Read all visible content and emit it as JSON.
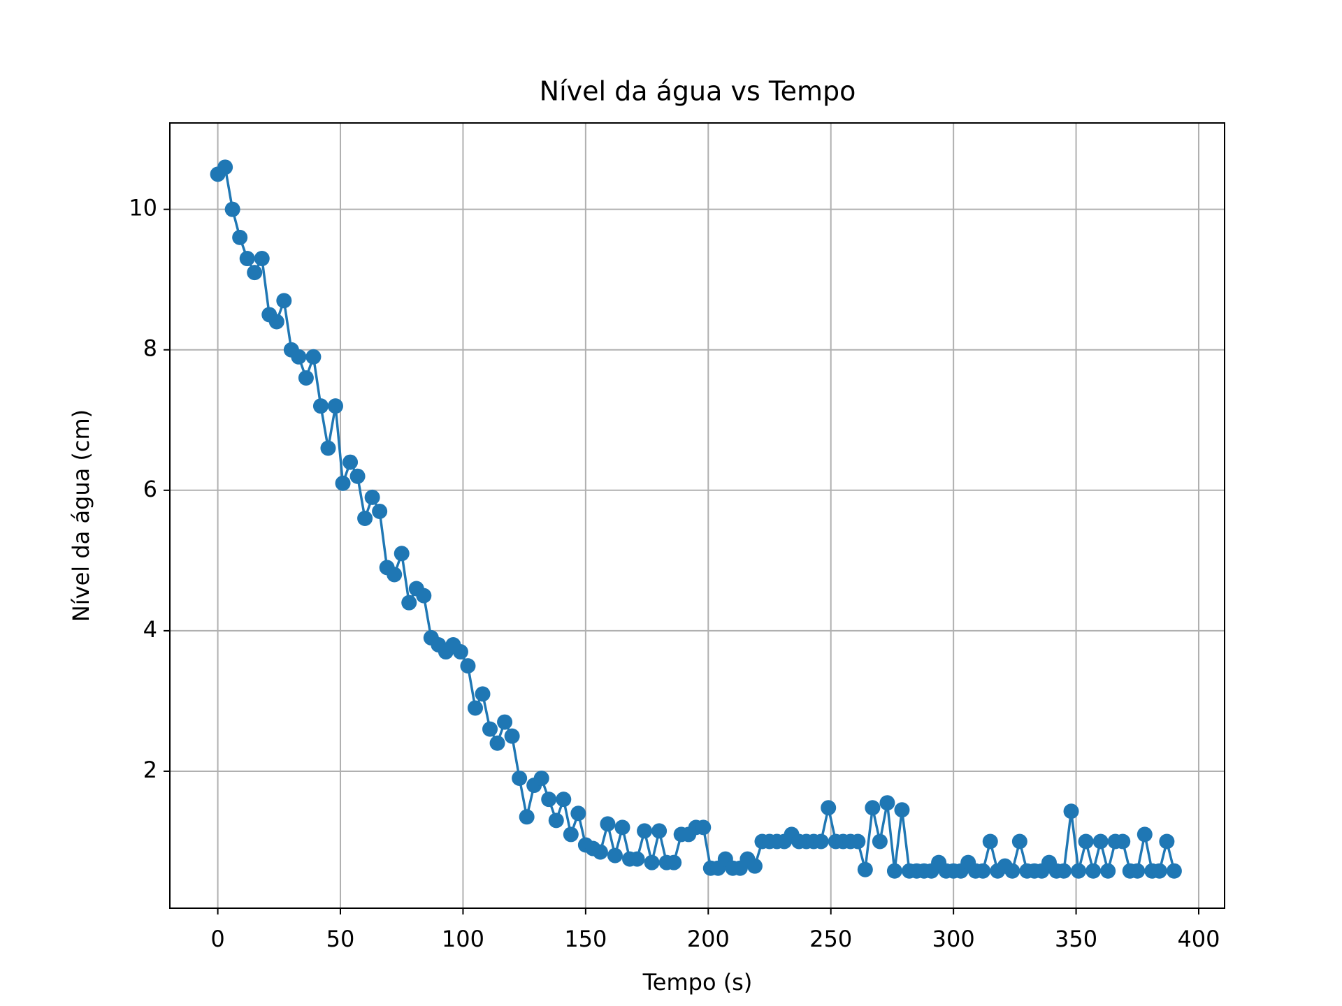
{
  "chart_data": {
    "type": "line",
    "title": "Nível da água vs Tempo",
    "x_label": "Tempo (s)",
    "y_label": "Nível da água (cm)",
    "x": [
      0,
      3,
      6,
      9,
      12,
      15,
      18,
      21,
      24,
      27,
      30,
      33,
      36,
      39,
      42,
      45,
      48,
      51,
      54,
      57,
      60,
      63,
      66,
      69,
      72,
      75,
      78,
      81,
      84,
      87,
      90,
      93,
      96,
      99,
      102,
      105,
      108,
      111,
      114,
      117,
      120,
      123,
      126,
      129,
      132,
      135,
      138,
      141,
      144,
      147,
      150,
      153,
      156,
      159,
      162,
      165,
      168,
      171,
      174,
      177,
      180,
      183,
      186,
      189,
      192,
      195,
      198,
      201,
      204,
      207,
      210,
      213,
      216,
      219,
      222,
      225,
      228,
      231,
      234,
      237,
      240,
      243,
      246,
      249,
      252,
      255,
      258,
      261,
      264,
      267,
      270,
      273,
      276,
      279,
      282,
      285,
      288,
      291,
      294,
      297,
      300,
      303,
      306,
      309,
      312,
      315,
      318,
      321,
      324,
      327,
      330,
      333,
      336,
      339,
      342,
      345,
      348,
      351,
      354,
      357,
      360,
      363,
      366,
      369,
      372,
      375,
      378,
      381,
      384,
      387,
      390
    ],
    "values": [
      10.5,
      10.6,
      10.0,
      9.6,
      9.3,
      9.1,
      9.3,
      8.5,
      8.4,
      8.7,
      8.0,
      7.9,
      7.6,
      7.9,
      7.2,
      6.6,
      7.2,
      6.1,
      6.4,
      6.2,
      5.6,
      5.9,
      5.7,
      4.9,
      4.8,
      5.1,
      4.4,
      4.6,
      4.5,
      3.9,
      3.8,
      3.7,
      3.8,
      3.7,
      3.5,
      2.9,
      3.1,
      2.6,
      2.4,
      2.7,
      2.5,
      1.9,
      1.35,
      1.8,
      1.9,
      1.6,
      1.3,
      1.6,
      1.1,
      1.4,
      0.95,
      0.9,
      0.85,
      1.25,
      0.8,
      1.2,
      0.75,
      0.75,
      1.15,
      0.7,
      1.15,
      0.7,
      0.7,
      1.1,
      1.1,
      1.2,
      1.2,
      0.62,
      0.62,
      0.75,
      0.62,
      0.62,
      0.75,
      0.65,
      1.0,
      1.0,
      1.0,
      1.0,
      1.1,
      1.0,
      1.0,
      1.0,
      1.0,
      1.48,
      1.0,
      1.0,
      1.0,
      1.0,
      0.6,
      1.48,
      1.0,
      1.55,
      0.58,
      1.45,
      0.58,
      0.58,
      0.58,
      0.58,
      0.7,
      0.58,
      0.58,
      0.58,
      0.7,
      0.58,
      0.58,
      1.0,
      0.58,
      0.65,
      0.58,
      1.0,
      0.58,
      0.58,
      0.58,
      0.7,
      0.58,
      0.58,
      1.43,
      0.58,
      1.0,
      0.58,
      1.0,
      0.58,
      1.0,
      1.0,
      0.58,
      0.58,
      1.1,
      0.58,
      0.58,
      1.0,
      0.58
    ],
    "color": "#1f77b4",
    "xlim": [
      -19.55,
      410.55
    ],
    "ylim": [
      0.05,
      11.23
    ],
    "xticks": [
      0,
      50,
      100,
      150,
      200,
      250,
      300,
      350,
      400
    ],
    "yticks": [
      2,
      4,
      6,
      8,
      10
    ],
    "grid": true
  }
}
